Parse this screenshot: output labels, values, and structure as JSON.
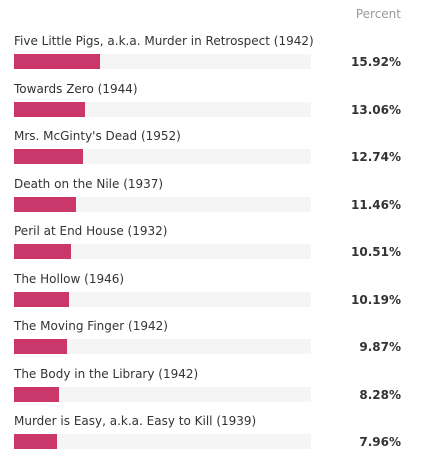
{
  "header": {
    "column_label": "Percent"
  },
  "colors": {
    "bar": "#c9376b",
    "track": "#f5f5f5"
  },
  "rows": [
    {
      "label": "Five Little Pigs, a.k.a. Murder in Retrospect (1942)",
      "percent_text": "15.92%",
      "value": 15.92
    },
    {
      "label": "Towards Zero (1944)",
      "percent_text": "13.06%",
      "value": 13.06
    },
    {
      "label": "Mrs. McGinty's Dead (1952)",
      "percent_text": "12.74%",
      "value": 12.74
    },
    {
      "label": "Death on the Nile (1937)",
      "percent_text": "11.46%",
      "value": 11.46
    },
    {
      "label": "Peril at End House (1932)",
      "percent_text": "10.51%",
      "value": 10.51
    },
    {
      "label": "The Hollow (1946)",
      "percent_text": "10.19%",
      "value": 10.19
    },
    {
      "label": "The Moving Finger (1942)",
      "percent_text": "9.87%",
      "value": 9.87
    },
    {
      "label": "The Body in the Library (1942)",
      "percent_text": "8.28%",
      "value": 8.28
    },
    {
      "label": "Murder is Easy, a.k.a. Easy to Kill (1939)",
      "percent_text": "7.96%",
      "value": 7.96
    }
  ]
}
